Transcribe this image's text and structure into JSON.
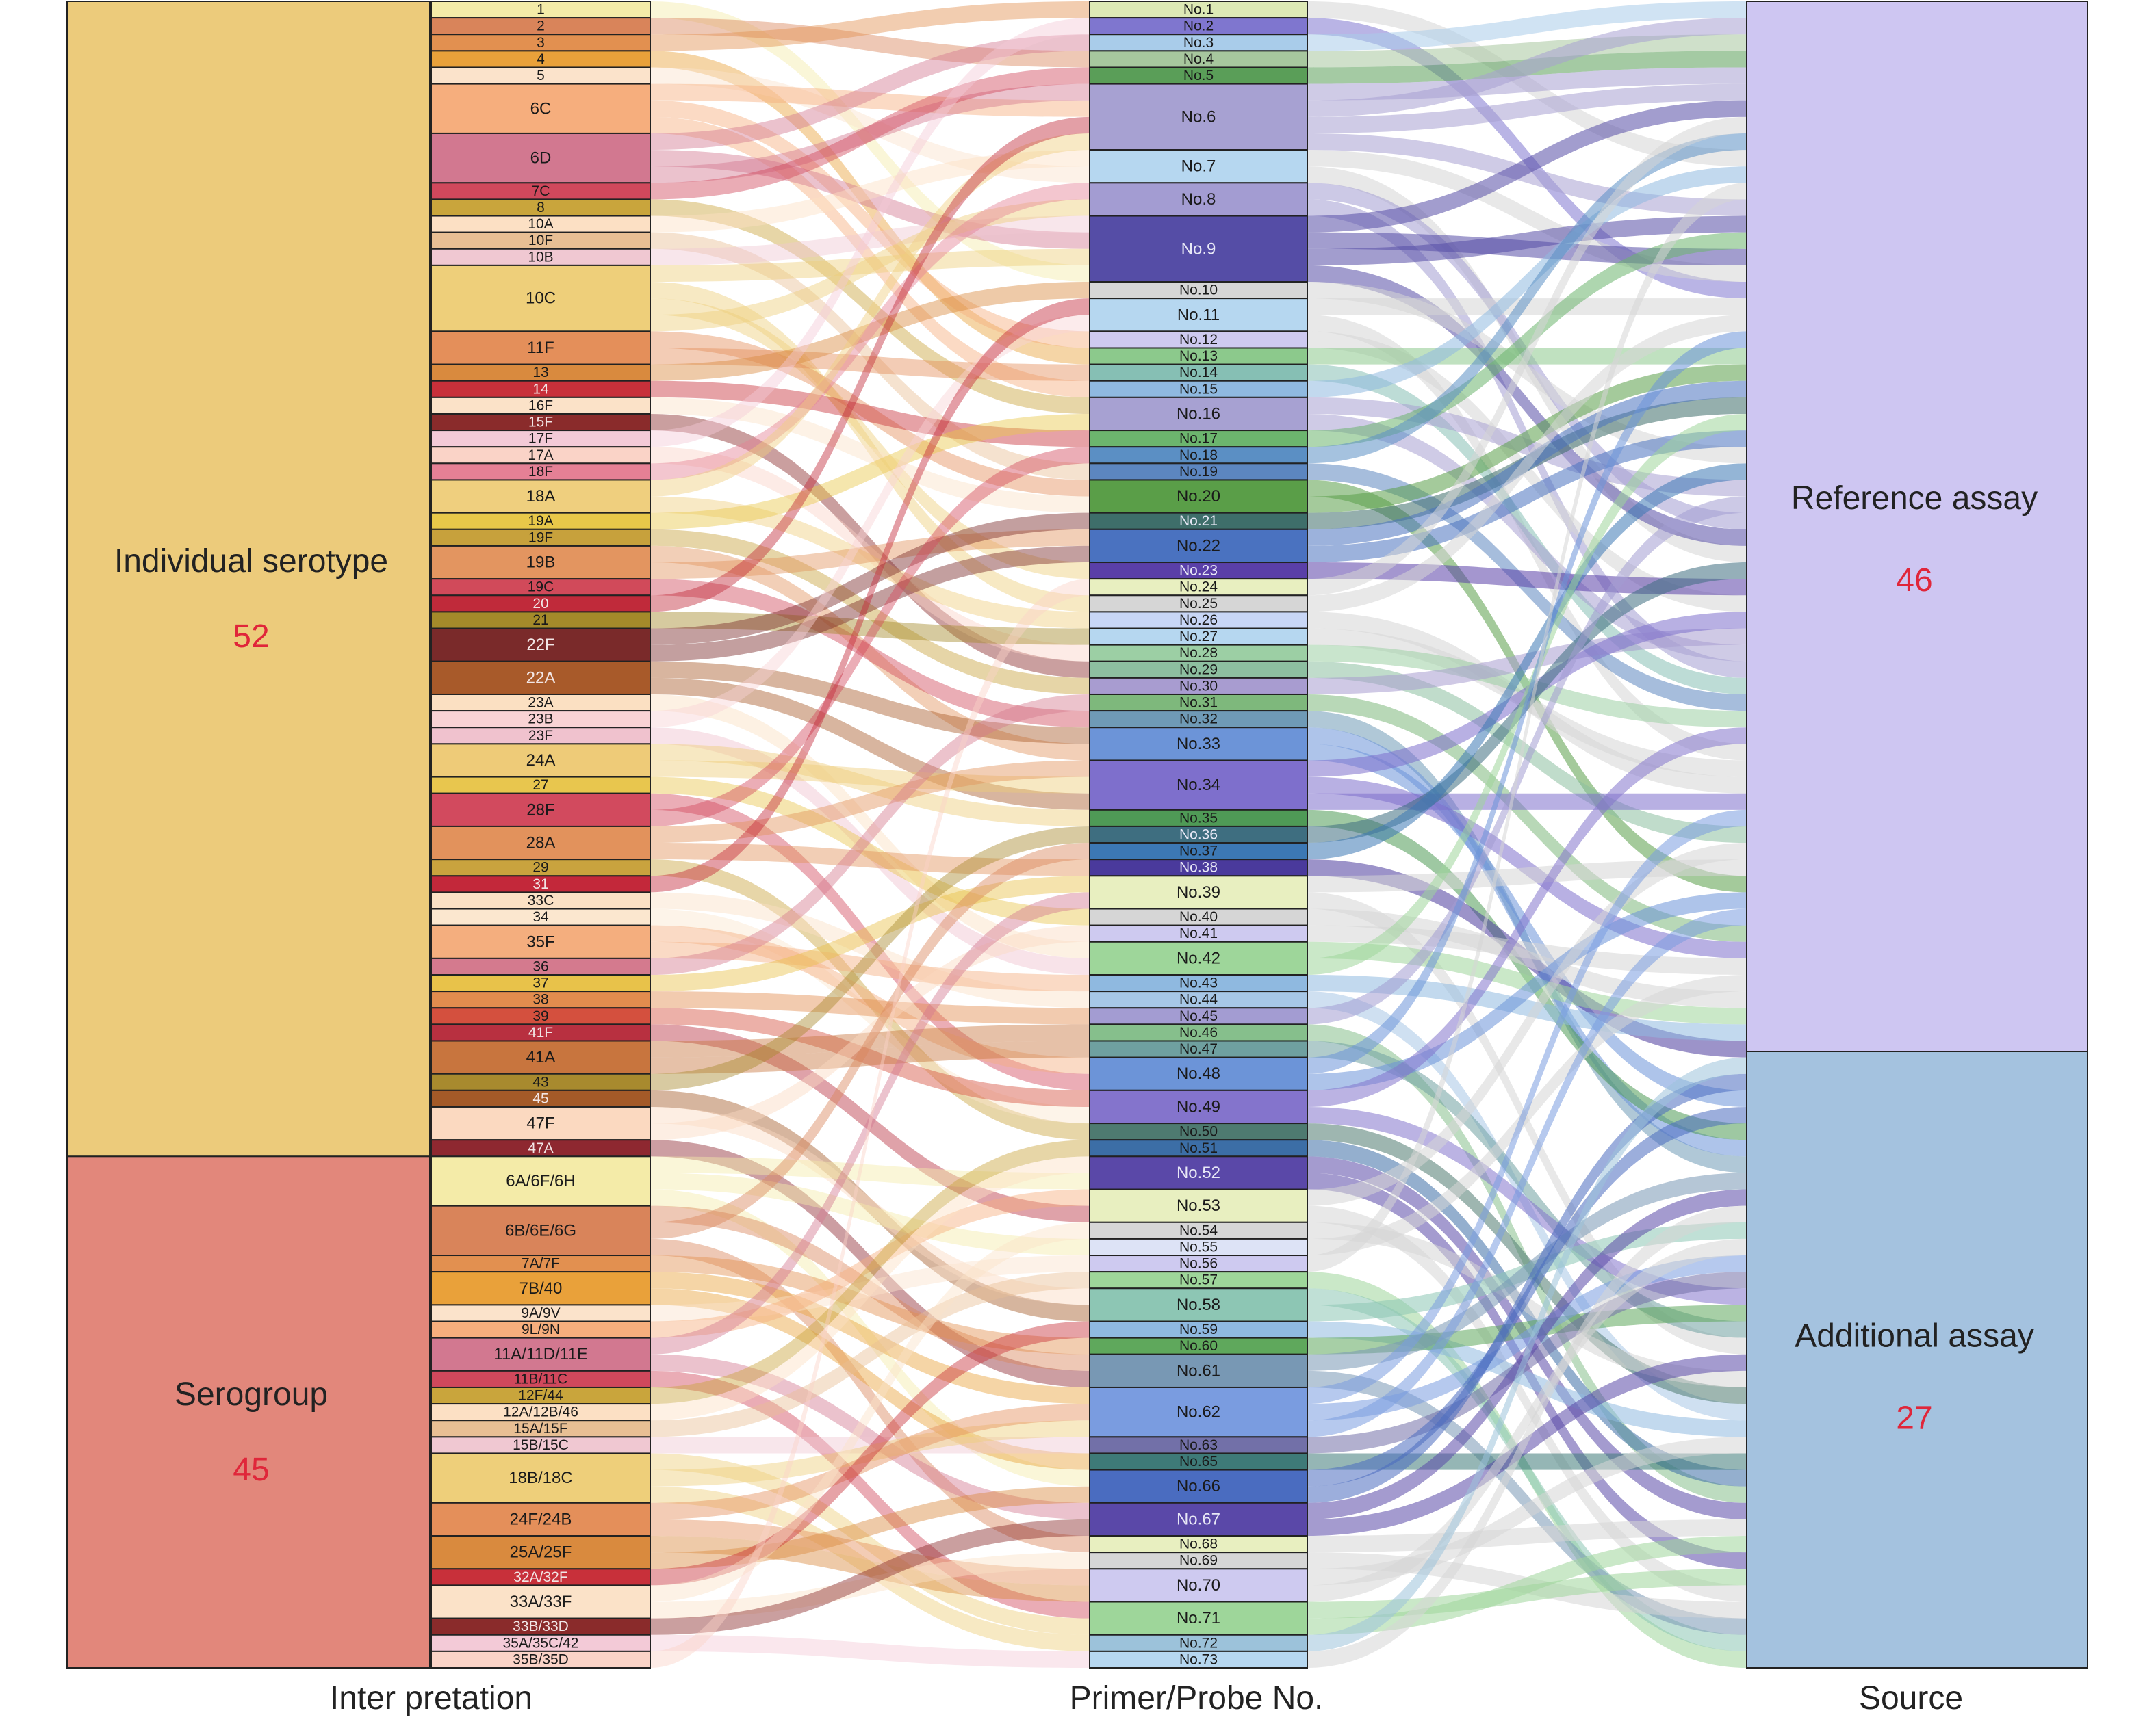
{
  "interpretation_groups": [
    {
      "label": "Individual serotype",
      "count": "52",
      "color": "#ECCB7B"
    },
    {
      "label": "Serogroup",
      "count": "45",
      "color": "#E2877B"
    }
  ],
  "source_groups": [
    {
      "label": "Reference assay",
      "count": "46",
      "color": "#CEC6F2"
    },
    {
      "label": "Additional assay",
      "count": "27",
      "color": "#A4C2DF"
    }
  ],
  "count_color": "#E0263A",
  "interpretations": [
    {
      "label": "1",
      "size": 1
    },
    {
      "label": "2",
      "size": 1
    },
    {
      "label": "3",
      "size": 1
    },
    {
      "label": "4",
      "size": 1
    },
    {
      "label": "5",
      "size": 1
    },
    {
      "label": "6C",
      "size": 3
    },
    {
      "label": "6D",
      "size": 3
    },
    {
      "label": "7C",
      "size": 1
    },
    {
      "label": "8",
      "size": 1
    },
    {
      "label": "10A",
      "size": 1
    },
    {
      "label": "10F",
      "size": 1
    },
    {
      "label": "10B",
      "size": 1
    },
    {
      "label": "10C",
      "size": 4
    },
    {
      "label": "11F",
      "size": 2
    },
    {
      "label": "13",
      "size": 1
    },
    {
      "label": "14",
      "size": 1
    },
    {
      "label": "16F",
      "size": 1
    },
    {
      "label": "15F",
      "size": 1
    },
    {
      "label": "17F",
      "size": 1
    },
    {
      "label": "17A",
      "size": 1
    },
    {
      "label": "18F",
      "size": 1
    },
    {
      "label": "18A",
      "size": 2
    },
    {
      "label": "19A",
      "size": 1
    },
    {
      "label": "19F",
      "size": 1
    },
    {
      "label": "19B",
      "size": 2
    },
    {
      "label": "19C",
      "size": 1
    },
    {
      "label": "20",
      "size": 1
    },
    {
      "label": "21",
      "size": 1
    },
    {
      "label": "22F",
      "size": 2
    },
    {
      "label": "22A",
      "size": 2
    },
    {
      "label": "23A",
      "size": 1
    },
    {
      "label": "23B",
      "size": 1
    },
    {
      "label": "23F",
      "size": 1
    },
    {
      "label": "24A",
      "size": 2
    },
    {
      "label": "27",
      "size": 1
    },
    {
      "label": "28F",
      "size": 2
    },
    {
      "label": "28A",
      "size": 2
    },
    {
      "label": "29",
      "size": 1
    },
    {
      "label": "31",
      "size": 1
    },
    {
      "label": "33C",
      "size": 1
    },
    {
      "label": "34",
      "size": 1
    },
    {
      "label": "35F",
      "size": 2
    },
    {
      "label": "36",
      "size": 1
    },
    {
      "label": "37",
      "size": 1
    },
    {
      "label": "38",
      "size": 1
    },
    {
      "label": "39",
      "size": 1
    },
    {
      "label": "41F",
      "size": 1
    },
    {
      "label": "41A",
      "size": 2
    },
    {
      "label": "43",
      "size": 1
    },
    {
      "label": "45",
      "size": 1
    },
    {
      "label": "47F",
      "size": 2
    },
    {
      "label": "47A",
      "size": 1
    },
    {
      "label": "6A/6F/6H",
      "size": 3
    },
    {
      "label": "6B/6E/6G",
      "size": 3
    },
    {
      "label": "7A/7F",
      "size": 1
    },
    {
      "label": "7B/40",
      "size": 2
    },
    {
      "label": "9A/9V",
      "size": 1
    },
    {
      "label": "9L/9N",
      "size": 1
    },
    {
      "label": "11A/11D/11E",
      "size": 2
    },
    {
      "label": "11B/11C",
      "size": 1
    },
    {
      "label": "12F/44",
      "size": 1
    },
    {
      "label": "12A/12B/46",
      "size": 1
    },
    {
      "label": "15A/15F",
      "size": 1
    },
    {
      "label": "15B/15C",
      "size": 1
    },
    {
      "label": "18B/18C",
      "size": 3
    },
    {
      "label": "24F/24B",
      "size": 2
    },
    {
      "label": "25A/25F",
      "size": 2
    },
    {
      "label": "32A/32F",
      "size": 1
    },
    {
      "label": "33A/33F",
      "size": 2
    },
    {
      "label": "33B/33D",
      "size": 1
    },
    {
      "label": "35A/35C/42",
      "size": 1
    },
    {
      "label": "35B/35D",
      "size": 1
    }
  ],
  "primers": [
    {
      "label": "No.1",
      "size": 1
    },
    {
      "label": "No.2",
      "size": 1
    },
    {
      "label": "No.3",
      "size": 1
    },
    {
      "label": "No.4",
      "size": 1
    },
    {
      "label": "No.5",
      "size": 1
    },
    {
      "label": "No.6",
      "size": 4
    },
    {
      "label": "No.7",
      "size": 2
    },
    {
      "label": "No.8",
      "size": 2
    },
    {
      "label": "No.9",
      "size": 4
    },
    {
      "label": "No.10",
      "size": 1
    },
    {
      "label": "No.11",
      "size": 2
    },
    {
      "label": "No.12",
      "size": 1
    },
    {
      "label": "No.13",
      "size": 1
    },
    {
      "label": "No.14",
      "size": 1
    },
    {
      "label": "No.15",
      "size": 1
    },
    {
      "label": "No.16",
      "size": 2
    },
    {
      "label": "No.17",
      "size": 1
    },
    {
      "label": "No.18",
      "size": 1
    },
    {
      "label": "No.19",
      "size": 1
    },
    {
      "label": "No.20",
      "size": 2
    },
    {
      "label": "No.21",
      "size": 1
    },
    {
      "label": "No.22",
      "size": 2
    },
    {
      "label": "No.23",
      "size": 1
    },
    {
      "label": "No.24",
      "size": 1
    },
    {
      "label": "No.25",
      "size": 1
    },
    {
      "label": "No.26",
      "size": 1
    },
    {
      "label": "No.27",
      "size": 1
    },
    {
      "label": "No.28",
      "size": 1
    },
    {
      "label": "No.29",
      "size": 1
    },
    {
      "label": "No.30",
      "size": 1
    },
    {
      "label": "No.31",
      "size": 1
    },
    {
      "label": "No.32",
      "size": 1
    },
    {
      "label": "No.33",
      "size": 2
    },
    {
      "label": "No.34",
      "size": 3
    },
    {
      "label": "No.35",
      "size": 1
    },
    {
      "label": "No.36",
      "size": 1
    },
    {
      "label": "No.37",
      "size": 1
    },
    {
      "label": "No.38",
      "size": 1
    },
    {
      "label": "No.39",
      "size": 2
    },
    {
      "label": "No.40",
      "size": 1
    },
    {
      "label": "No.41",
      "size": 1
    },
    {
      "label": "No.42",
      "size": 2
    },
    {
      "label": "No.43",
      "size": 1
    },
    {
      "label": "No.44",
      "size": 1
    },
    {
      "label": "No.45",
      "size": 1
    },
    {
      "label": "No.46",
      "size": 1
    },
    {
      "label": "No.47",
      "size": 1
    },
    {
      "label": "No.48",
      "size": 2
    },
    {
      "label": "No.49",
      "size": 2
    },
    {
      "label": "No.50",
      "size": 1
    },
    {
      "label": "No.51",
      "size": 1
    },
    {
      "label": "No.52",
      "size": 2
    },
    {
      "label": "No.53",
      "size": 2
    },
    {
      "label": "No.54",
      "size": 1
    },
    {
      "label": "No.55",
      "size": 1
    },
    {
      "label": "No.56",
      "size": 1
    },
    {
      "label": "No.57",
      "size": 1
    },
    {
      "label": "No.58",
      "size": 2
    },
    {
      "label": "No.59",
      "size": 1
    },
    {
      "label": "No.60",
      "size": 1
    },
    {
      "label": "No.61",
      "size": 2
    },
    {
      "label": "No.62",
      "size": 3
    },
    {
      "label": "No.63",
      "size": 1
    },
    {
      "label": "No.65",
      "size": 1
    },
    {
      "label": "No.66",
      "size": 2
    },
    {
      "label": "No.67",
      "size": 2
    },
    {
      "label": "No.68",
      "size": 1
    },
    {
      "label": "No.69",
      "size": 1
    },
    {
      "label": "No.70",
      "size": 2
    },
    {
      "label": "No.71",
      "size": 2
    },
    {
      "label": "No.72",
      "size": 1
    },
    {
      "label": "No.73",
      "size": 1
    }
  ],
  "interp_palette": [
    "#F4EBA8",
    "#D9845A",
    "#E29050",
    "#E9A13A",
    "#FBE3CB",
    "#F6AE7D",
    "#D27890",
    "#D0485C",
    "#C9A53C",
    "#FCE0C4",
    "#E8BF94",
    "#F0C8D2",
    "#EECF7A",
    "#E48F5A",
    "#D98A3E",
    "#C8303A",
    "#FBE2C8",
    "#8A2B2B",
    "#F3CAD7",
    "#FAD3C7",
    "#E58095",
    "#EFCF7E",
    "#E8C849",
    "#C7A13C",
    "#E39560",
    "#D14A5A",
    "#C02A3A",
    "#A48A2A",
    "#7A2A2A",
    "#A85A2A",
    "#FBE0C2",
    "#F8D2D4",
    "#F0C2CE",
    "#EECB78",
    "#E8C64E",
    "#D24A5E",
    "#E2925C",
    "#C9A33E",
    "#C3283A",
    "#FAE1C5",
    "#FBE7CF",
    "#F4AE7E",
    "#D47A8E",
    "#E8C24A",
    "#E28C4E",
    "#D4503E",
    "#B83040",
    "#C8753E",
    "#A88A2E",
    "#A45A28",
    "#FBD9C0",
    "#8E2830"
  ],
  "primer_palette": [
    "#DDE9B5",
    "#7F76CF",
    "#A9CCEA",
    "#A7C79E",
    "#5A9E58",
    "#A7A1D2",
    "#B6D7F0",
    "#A39CD2",
    "#554DA6",
    "#D6D6D6",
    "#B6D7F0",
    "#CECAF0",
    "#8CC98C",
    "#86BFB4",
    "#8FB9E0",
    "#A7A1D2",
    "#6CB56E",
    "#5B8FC4",
    "#5C86C0",
    "#5A9E48",
    "#3E6E6A",
    "#4A72C0",
    "#5A3FA8",
    "#E8EFC0",
    "#D6D6D6",
    "#C8D6F6",
    "#B6D7F0",
    "#9CCFA4",
    "#8DBFA0",
    "#A89CD0",
    "#7EB87C",
    "#6F9AB6",
    "#6C94D8",
    "#7E6FCC",
    "#4F9A56",
    "#3E6E80",
    "#3C78B4",
    "#4A3A9C",
    "#E8EFC0",
    "#D6D6D6",
    "#CECAF0",
    "#9ED69A",
    "#8FB9E0",
    "#A7C7E6",
    "#A39CD2",
    "#86BF8C",
    "#6FA0A0",
    "#6C94D8",
    "#8474CC",
    "#4E7A70",
    "#3C6EA6",
    "#5A48A8",
    "#E8EFC0",
    "#D6D6D6",
    "#DDE3F6",
    "#CECAF0",
    "#9ED69A",
    "#8DC6B4",
    "#8FB9E0",
    "#5FA85C",
    "#7898B4",
    "#7A9CE0",
    "#7270A8",
    "#3E7A78",
    "#4A6CC0",
    "#5A48A8",
    "#E8EFC0",
    "#D6D6D6",
    "#CECAF0",
    "#9ED69A",
    "#9CC2DA",
    "#B6D7F0"
  ],
  "ribbon_palette": [
    "#F6C7A4",
    "#E9B18E",
    "#F3C0CB",
    "#F7EBB0",
    "#F9D9B8",
    "#E6A196",
    "#D99E6C",
    "#CC8076",
    "#F1B7B0",
    "#E7C7A0"
  ],
  "source_ribbon_palette": [
    "#D9D9D9",
    "#B9B2E4",
    "#A9CBEA",
    "#A8D6A0",
    "#E5EBC0",
    "#8FA9D0"
  ],
  "x_labels": [
    "Inter pretation",
    "Primer/Probe No.",
    "Source"
  ]
}
